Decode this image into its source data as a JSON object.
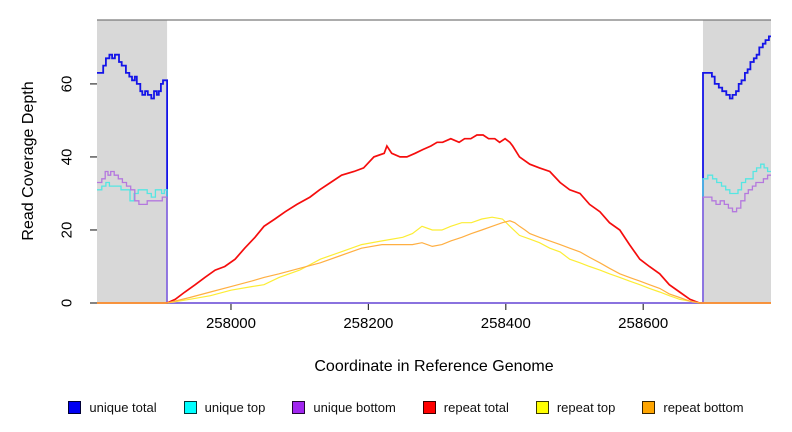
{
  "chart_data": {
    "type": "line",
    "title": "",
    "xlabel": "Coordinate in Reference Genome",
    "ylabel": "Read Coverage Depth",
    "xlim": [
      257805,
      258786
    ],
    "ylim": [
      0,
      77.5
    ],
    "x_ticks": [
      258000,
      258200,
      258400,
      258600
    ],
    "x_tick_labels": [
      "258000",
      "258200",
      "258400",
      "258600"
    ],
    "y_ticks": [
      0,
      20,
      40,
      60
    ],
    "y_tick_labels": [
      "0",
      "20",
      "40",
      "60"
    ],
    "grid": "off",
    "legend_position": "bottom",
    "axis_color": "#333333",
    "top_border_color": "#7a7a7a",
    "masked_region_color": "#d8d8d8",
    "masked_regions": [
      [
        257805,
        257907
      ],
      [
        258687,
        258786
      ]
    ],
    "series": [
      {
        "name": "unique total",
        "color": "#1414e8",
        "legend_color": "#0000f2",
        "width": 1.8,
        "interp": "step",
        "points": [
          [
            257805,
            63
          ],
          [
            257814,
            65
          ],
          [
            257818,
            67
          ],
          [
            257823,
            68
          ],
          [
            257827,
            67
          ],
          [
            257831,
            68
          ],
          [
            257837,
            66
          ],
          [
            257841,
            65
          ],
          [
            257847,
            63
          ],
          [
            257852,
            62
          ],
          [
            257856,
            61
          ],
          [
            257860,
            62
          ],
          [
            257863,
            60
          ],
          [
            257868,
            58
          ],
          [
            257871,
            57
          ],
          [
            257875,
            58
          ],
          [
            257879,
            57
          ],
          [
            257884,
            56
          ],
          [
            257888,
            58
          ],
          [
            257892,
            57
          ],
          [
            257895,
            58
          ],
          [
            257898,
            60
          ],
          [
            257901,
            61
          ],
          [
            257906,
            61
          ],
          [
            257907,
            0
          ],
          [
            258686,
            0
          ],
          [
            258687,
            63
          ],
          [
            258695,
            63
          ],
          [
            258700,
            62
          ],
          [
            258704,
            60
          ],
          [
            258710,
            59
          ],
          [
            258715,
            58
          ],
          [
            258721,
            57
          ],
          [
            258726,
            56
          ],
          [
            258730,
            57
          ],
          [
            258735,
            58
          ],
          [
            258739,
            60
          ],
          [
            258743,
            61
          ],
          [
            258748,
            63
          ],
          [
            258752,
            64
          ],
          [
            258756,
            66
          ],
          [
            258761,
            67
          ],
          [
            258765,
            68
          ],
          [
            258769,
            70
          ],
          [
            258774,
            71
          ],
          [
            258778,
            72
          ],
          [
            258783,
            73
          ],
          [
            258786,
            73
          ]
        ]
      },
      {
        "name": "unique top",
        "color": "#55e6e2",
        "legend_color": "#00ffff",
        "width": 1.3,
        "interp": "step",
        "points": [
          [
            257805,
            31
          ],
          [
            257812,
            32
          ],
          [
            257818,
            33
          ],
          [
            257823,
            32
          ],
          [
            257831,
            32
          ],
          [
            257840,
            31
          ],
          [
            257847,
            31
          ],
          [
            257853,
            28
          ],
          [
            257859,
            30
          ],
          [
            257865,
            31
          ],
          [
            257872,
            31
          ],
          [
            257878,
            30
          ],
          [
            257884,
            29
          ],
          [
            257890,
            31
          ],
          [
            257895,
            31
          ],
          [
            257899,
            30
          ],
          [
            257903,
            31
          ],
          [
            257906,
            31
          ],
          [
            257907,
            0
          ],
          [
            258686,
            0
          ],
          [
            258687,
            34
          ],
          [
            258694,
            35
          ],
          [
            258701,
            34
          ],
          [
            258707,
            33
          ],
          [
            258714,
            32
          ],
          [
            258720,
            31
          ],
          [
            258726,
            30
          ],
          [
            258732,
            30
          ],
          [
            258738,
            31
          ],
          [
            258743,
            33
          ],
          [
            258749,
            34
          ],
          [
            258754,
            34
          ],
          [
            258760,
            36
          ],
          [
            258765,
            37
          ],
          [
            258771,
            38
          ],
          [
            258776,
            37
          ],
          [
            258781,
            36
          ],
          [
            258786,
            36
          ]
        ]
      },
      {
        "name": "unique bottom",
        "color": "#b478de",
        "legend_color": "#a126f0",
        "width": 1.3,
        "interp": "step",
        "points": [
          [
            257805,
            33
          ],
          [
            257812,
            34
          ],
          [
            257817,
            36
          ],
          [
            257821,
            35
          ],
          [
            257825,
            36
          ],
          [
            257830,
            35
          ],
          [
            257836,
            34
          ],
          [
            257842,
            33
          ],
          [
            257848,
            32
          ],
          [
            257854,
            31
          ],
          [
            257860,
            28
          ],
          [
            257866,
            27
          ],
          [
            257872,
            27
          ],
          [
            257878,
            28
          ],
          [
            257889,
            28
          ],
          [
            257895,
            28
          ],
          [
            257900,
            29
          ],
          [
            257906,
            29
          ],
          [
            257907,
            0
          ],
          [
            258686,
            0
          ],
          [
            258687,
            29
          ],
          [
            258694,
            29
          ],
          [
            258700,
            28
          ],
          [
            258706,
            27
          ],
          [
            258712,
            28
          ],
          [
            258718,
            27
          ],
          [
            258724,
            26
          ],
          [
            258730,
            25
          ],
          [
            258736,
            26
          ],
          [
            258742,
            28
          ],
          [
            258748,
            30
          ],
          [
            258753,
            31
          ],
          [
            258759,
            32
          ],
          [
            258764,
            33
          ],
          [
            258770,
            33
          ],
          [
            258775,
            34
          ],
          [
            258781,
            35
          ],
          [
            258786,
            35
          ]
        ]
      },
      {
        "name": "repeat total",
        "color": "#f50d0d",
        "legend_color": "#ff0000",
        "width": 1.7,
        "interp": "linear",
        "points": [
          [
            257805,
            0
          ],
          [
            257907,
            0
          ],
          [
            257919,
            1
          ],
          [
            257933,
            3
          ],
          [
            257948,
            5
          ],
          [
            257962,
            7
          ],
          [
            257977,
            9
          ],
          [
            257991,
            10
          ],
          [
            258006,
            12
          ],
          [
            258020,
            15
          ],
          [
            258035,
            18
          ],
          [
            258048,
            21
          ],
          [
            258064,
            23
          ],
          [
            258079,
            25
          ],
          [
            258096,
            27
          ],
          [
            258115,
            29
          ],
          [
            258129,
            31
          ],
          [
            258145,
            33
          ],
          [
            258161,
            35
          ],
          [
            258179,
            36
          ],
          [
            258193,
            37
          ],
          [
            258208,
            40
          ],
          [
            258223,
            41
          ],
          [
            258227,
            43
          ],
          [
            258234,
            41
          ],
          [
            258246,
            40
          ],
          [
            258256,
            40
          ],
          [
            258268,
            41
          ],
          [
            258279,
            42
          ],
          [
            258291,
            43
          ],
          [
            258300,
            44
          ],
          [
            258308,
            44
          ],
          [
            258320,
            45
          ],
          [
            258332,
            44
          ],
          [
            258340,
            45
          ],
          [
            258349,
            45
          ],
          [
            258358,
            46
          ],
          [
            258367,
            46
          ],
          [
            258375,
            45
          ],
          [
            258384,
            45
          ],
          [
            258391,
            44
          ],
          [
            258399,
            45
          ],
          [
            258406,
            44
          ],
          [
            258410,
            43
          ],
          [
            258420,
            40
          ],
          [
            258435,
            38
          ],
          [
            258449,
            37
          ],
          [
            258464,
            36
          ],
          [
            258479,
            33
          ],
          [
            258493,
            31
          ],
          [
            258508,
            30
          ],
          [
            258522,
            27
          ],
          [
            258537,
            25
          ],
          [
            258551,
            22
          ],
          [
            258566,
            20
          ],
          [
            258580,
            16
          ],
          [
            258595,
            12
          ],
          [
            258609,
            10
          ],
          [
            258624,
            8
          ],
          [
            258638,
            5
          ],
          [
            258653,
            3
          ],
          [
            258668,
            1
          ],
          [
            258682,
            0
          ],
          [
            258786,
            0
          ]
        ]
      },
      {
        "name": "repeat top",
        "color": "#fced35",
        "legend_color": "#ffff00",
        "width": 1.2,
        "interp": "linear",
        "points": [
          [
            257805,
            0
          ],
          [
            257907,
            0
          ],
          [
            257940,
            1
          ],
          [
            257970,
            2
          ],
          [
            258000,
            3.5
          ],
          [
            258030,
            4.5
          ],
          [
            258048,
            5
          ],
          [
            258070,
            7
          ],
          [
            258100,
            9
          ],
          [
            258130,
            12
          ],
          [
            258160,
            14
          ],
          [
            258190,
            16
          ],
          [
            258220,
            17
          ],
          [
            258250,
            18
          ],
          [
            258264,
            19
          ],
          [
            258278,
            21
          ],
          [
            258293,
            20
          ],
          [
            258307,
            20
          ],
          [
            258320,
            21
          ],
          [
            258336,
            22
          ],
          [
            258350,
            22
          ],
          [
            258365,
            23
          ],
          [
            258380,
            23.5
          ],
          [
            258395,
            23
          ],
          [
            258406,
            21
          ],
          [
            258420,
            18.5
          ],
          [
            258435,
            17.5
          ],
          [
            258449,
            16.5
          ],
          [
            258464,
            15
          ],
          [
            258479,
            14
          ],
          [
            258493,
            12
          ],
          [
            258508,
            11
          ],
          [
            258522,
            10
          ],
          [
            258537,
            9
          ],
          [
            258551,
            8
          ],
          [
            258566,
            7
          ],
          [
            258580,
            6
          ],
          [
            258595,
            5
          ],
          [
            258609,
            4
          ],
          [
            258624,
            3
          ],
          [
            258638,
            2
          ],
          [
            258653,
            1
          ],
          [
            258668,
            0.5
          ],
          [
            258682,
            0
          ],
          [
            258786,
            0
          ]
        ]
      },
      {
        "name": "repeat bottom",
        "color": "#ffaf42",
        "legend_color": "#ffa500",
        "width": 1.2,
        "interp": "linear",
        "points": [
          [
            257805,
            0
          ],
          [
            257907,
            0
          ],
          [
            257940,
            1.5
          ],
          [
            257970,
            3
          ],
          [
            258000,
            4.5
          ],
          [
            258030,
            6
          ],
          [
            258048,
            7
          ],
          [
            258070,
            8
          ],
          [
            258100,
            9.5
          ],
          [
            258130,
            11
          ],
          [
            258160,
            13
          ],
          [
            258190,
            15
          ],
          [
            258220,
            16
          ],
          [
            258250,
            16
          ],
          [
            258264,
            16
          ],
          [
            258278,
            16.5
          ],
          [
            258293,
            15.5
          ],
          [
            258307,
            16
          ],
          [
            258320,
            17
          ],
          [
            258336,
            18
          ],
          [
            258350,
            19
          ],
          [
            258365,
            20
          ],
          [
            258380,
            21
          ],
          [
            258395,
            22
          ],
          [
            258406,
            22.5
          ],
          [
            258413,
            22
          ],
          [
            258420,
            21
          ],
          [
            258428,
            20
          ],
          [
            258435,
            19
          ],
          [
            258449,
            18
          ],
          [
            258464,
            17
          ],
          [
            258479,
            16
          ],
          [
            258493,
            15
          ],
          [
            258508,
            14
          ],
          [
            258522,
            12.5
          ],
          [
            258537,
            11
          ],
          [
            258551,
            9.5
          ],
          [
            258566,
            8
          ],
          [
            258580,
            7
          ],
          [
            258595,
            6
          ],
          [
            258609,
            5
          ],
          [
            258624,
            4
          ],
          [
            258638,
            2.5
          ],
          [
            258653,
            1.5
          ],
          [
            258668,
            0.5
          ],
          [
            258682,
            0
          ],
          [
            258786,
            0
          ]
        ]
      }
    ]
  }
}
